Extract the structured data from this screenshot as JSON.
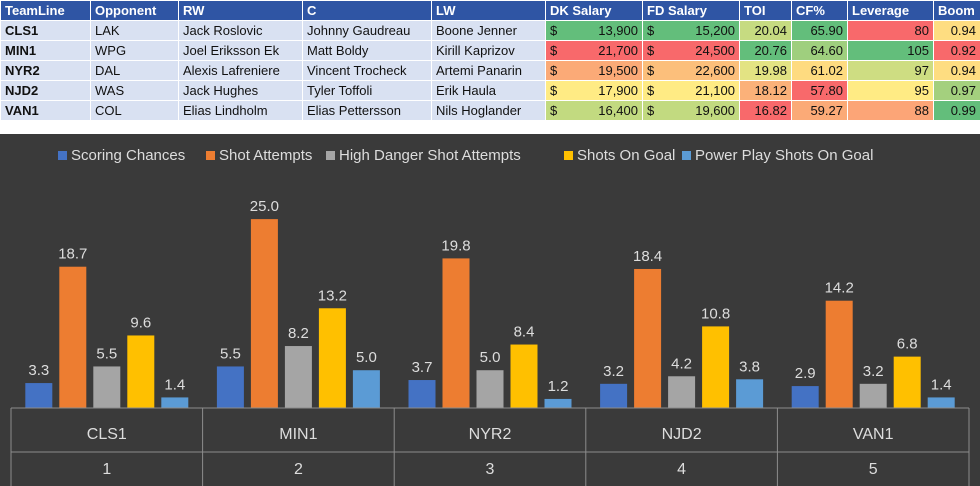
{
  "table": {
    "headers": [
      "TeamLine",
      "Opponent",
      "RW",
      "C",
      "LW",
      "DK Salary",
      "FD Salary",
      "TOI",
      "CF%",
      "Leverage",
      "Boom"
    ],
    "rows": [
      {
        "teamline": "CLS1",
        "opponent": "LAK",
        "rw": "Jack Roslovic",
        "c": "Johnny Gaudreau",
        "lw": "Boone Jenner",
        "dk": "13,900",
        "fd": "15,200",
        "toi": "20.04",
        "cf": "65.90",
        "leverage": "80",
        "boom": "0.94"
      },
      {
        "teamline": "MIN1",
        "opponent": "WPG",
        "rw": "Joel Eriksson Ek",
        "c": "Matt Boldy",
        "lw": "Kirill Kaprizov",
        "dk": "21,700",
        "fd": "24,500",
        "toi": "20.76",
        "cf": "64.60",
        "leverage": "105",
        "boom": "0.92"
      },
      {
        "teamline": "NYR2",
        "opponent": "DAL",
        "rw": "Alexis Lafreniere",
        "c": "Vincent Trocheck",
        "lw": "Artemi Panarin",
        "dk": "19,500",
        "fd": "22,600",
        "toi": "19.98",
        "cf": "61.02",
        "leverage": "97",
        "boom": "0.94"
      },
      {
        "teamline": "NJD2",
        "opponent": "WAS",
        "rw": "Jack Hughes",
        "c": "Tyler Toffoli",
        "lw": "Erik Haula",
        "dk": "17,900",
        "fd": "21,100",
        "toi": "18.12",
        "cf": "57.80",
        "leverage": "95",
        "boom": "0.97"
      },
      {
        "teamline": "VAN1",
        "opponent": "COL",
        "rw": "Elias Lindholm",
        "c": "Elias Pettersson",
        "lw": "Nils Hoglander",
        "dk": "16,400",
        "fd": "19,600",
        "toi": "16.82",
        "cf": "59.27",
        "leverage": "88",
        "boom": "0.99"
      }
    ],
    "currency_symbol": "$",
    "cell_colors": {
      "dk": [
        "#63be7b",
        "#f8696b",
        "#fbaa77",
        "#ffeb84",
        "#c2da80"
      ],
      "fd": [
        "#63be7b",
        "#f8696b",
        "#fcbf7b",
        "#ffeb84",
        "#c2da80"
      ],
      "toi": [
        "#c6db81",
        "#63be7b",
        "#e3e383",
        "#fbb179",
        "#f8696b"
      ],
      "cf": [
        "#63be7b",
        "#9fcf7e",
        "#fedb80",
        "#f8696b",
        "#fbaa77"
      ],
      "leverage": [
        "#f8696b",
        "#63be7b",
        "#cedd82",
        "#ffeb84",
        "#fca577"
      ],
      "boom": [
        "#fedd81",
        "#f8696b",
        "#fedd81",
        "#a4d07e",
        "#63be7b"
      ]
    }
  },
  "chart_data": {
    "type": "bar",
    "categories": [
      "CLS1",
      "MIN1",
      "NYR2",
      "NJD2",
      "VAN1"
    ],
    "category_indices": [
      "1",
      "2",
      "3",
      "4",
      "5"
    ],
    "series": [
      {
        "name": "Scoring Chances",
        "color": "#4472c4",
        "values": [
          3.3,
          5.5,
          3.7,
          3.2,
          2.9
        ]
      },
      {
        "name": "Shot Attempts",
        "color": "#ed7d31",
        "values": [
          18.7,
          25.0,
          19.8,
          18.4,
          14.2
        ]
      },
      {
        "name": "High Danger Shot Attempts",
        "color": "#a5a5a5",
        "values": [
          5.5,
          8.2,
          5.0,
          4.2,
          3.2
        ]
      },
      {
        "name": "Shots On Goal",
        "color": "#ffc000",
        "values": [
          9.6,
          13.2,
          8.4,
          10.8,
          6.8
        ]
      },
      {
        "name": "Power Play Shots On Goal",
        "color": "#5b9bd5",
        "values": [
          1.4,
          5.0,
          1.2,
          3.8,
          1.4
        ]
      }
    ],
    "ylim": [
      0,
      27
    ],
    "legend_position": "top",
    "grid": false,
    "background": "#3a3a3a",
    "label_color": "#dddddd"
  }
}
